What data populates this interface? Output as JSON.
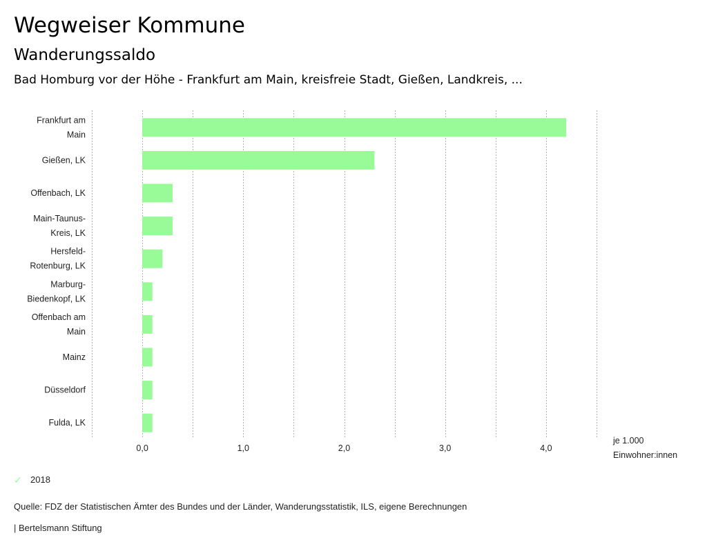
{
  "header": {
    "title": "Wegweiser Kommune",
    "subtitle": "Wanderungssaldo",
    "selection": "Bad Homburg vor der Höhe - Frankfurt am Main, kreisfreie Stadt, Gießen, Landkreis, ..."
  },
  "colors": {
    "bar": "#98fb98",
    "grid": "#b0b0b0"
  },
  "chart_data": {
    "type": "bar",
    "orientation": "horizontal",
    "title": "Wanderungssaldo",
    "categories": [
      [
        "Frankfurt am",
        "Main"
      ],
      [
        "Gießen, LK"
      ],
      [
        "Offenbach, LK"
      ],
      [
        "Main-Taunus-",
        "Kreis, LK"
      ],
      [
        "Hersfeld-",
        "Rotenburg, LK"
      ],
      [
        "Marburg-",
        "Biedenkopf, LK"
      ],
      [
        "Offenbach am",
        "Main"
      ],
      [
        "Mainz"
      ],
      [
        "Düsseldorf"
      ],
      [
        "Fulda, LK"
      ]
    ],
    "series": [
      {
        "name": "2018",
        "values": [
          4.2,
          2.3,
          0.3,
          0.3,
          0.2,
          0.1,
          0.1,
          0.1,
          0.1,
          0.1
        ]
      }
    ],
    "xlim": [
      -0.5,
      4.5
    ],
    "grid_step": 0.5,
    "ticks": [
      {
        "value": 0,
        "label": "0,0"
      },
      {
        "value": 1,
        "label": "1,0"
      },
      {
        "value": 2,
        "label": "2,0"
      },
      {
        "value": 3,
        "label": "3,0"
      },
      {
        "value": 4,
        "label": "4,0"
      }
    ],
    "unit_label": [
      "je 1.000",
      "Einwohner:innen"
    ],
    "grid": true,
    "legend_position": "bottom-left"
  },
  "legend": {
    "items": [
      {
        "label": "2018",
        "icon": "check-icon"
      }
    ]
  },
  "footer": {
    "source": "Quelle: FDZ der Statistischen Ämter des Bundes und der Länder, Wanderungsstatistik, ILS, eigene Berechnungen",
    "publisher": "| Bertelsmann Stiftung"
  }
}
